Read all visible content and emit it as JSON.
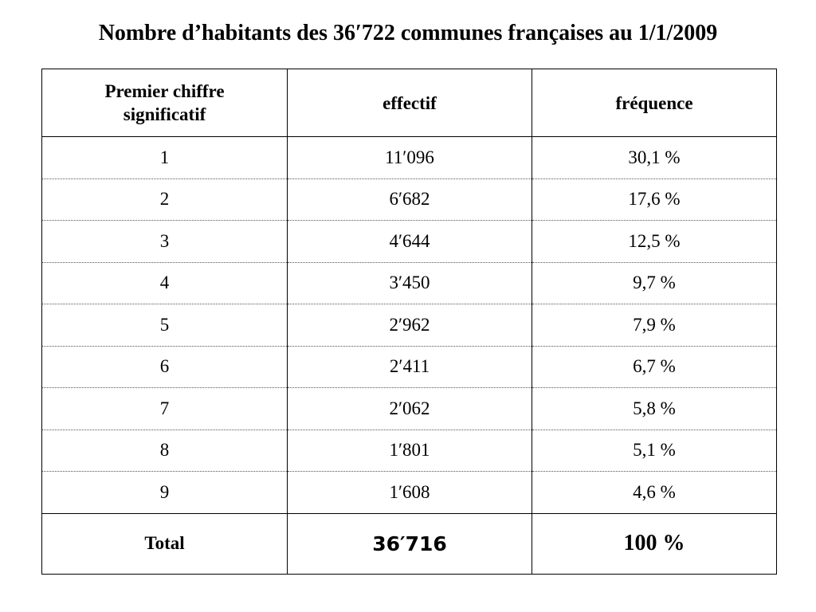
{
  "title": "Nombre d’habitants des 36′722 communes françaises au 1/1/2009",
  "chart_data": {
    "type": "table",
    "columns": [
      "Premier chiffre significatif",
      "effectif",
      "fréquence"
    ],
    "rows": [
      {
        "digit": "1",
        "count": "11′096",
        "freq": "30,1 %"
      },
      {
        "digit": "2",
        "count": "6′682",
        "freq": "17,6 %"
      },
      {
        "digit": "3",
        "count": "4′644",
        "freq": "12,5 %"
      },
      {
        "digit": "4",
        "count": "3′450",
        "freq": "9,7 %"
      },
      {
        "digit": "5",
        "count": "2′962",
        "freq": "7,9 %"
      },
      {
        "digit": "6",
        "count": "2′411",
        "freq": "6,7 %"
      },
      {
        "digit": "7",
        "count": "2′062",
        "freq": "5,8 %"
      },
      {
        "digit": "8",
        "count": "1′801",
        "freq": "5,1 %"
      },
      {
        "digit": "9",
        "count": "1′608",
        "freq": "4,6 %"
      }
    ],
    "total": {
      "label": "Total",
      "count": "36′716",
      "freq": "100 %"
    }
  }
}
